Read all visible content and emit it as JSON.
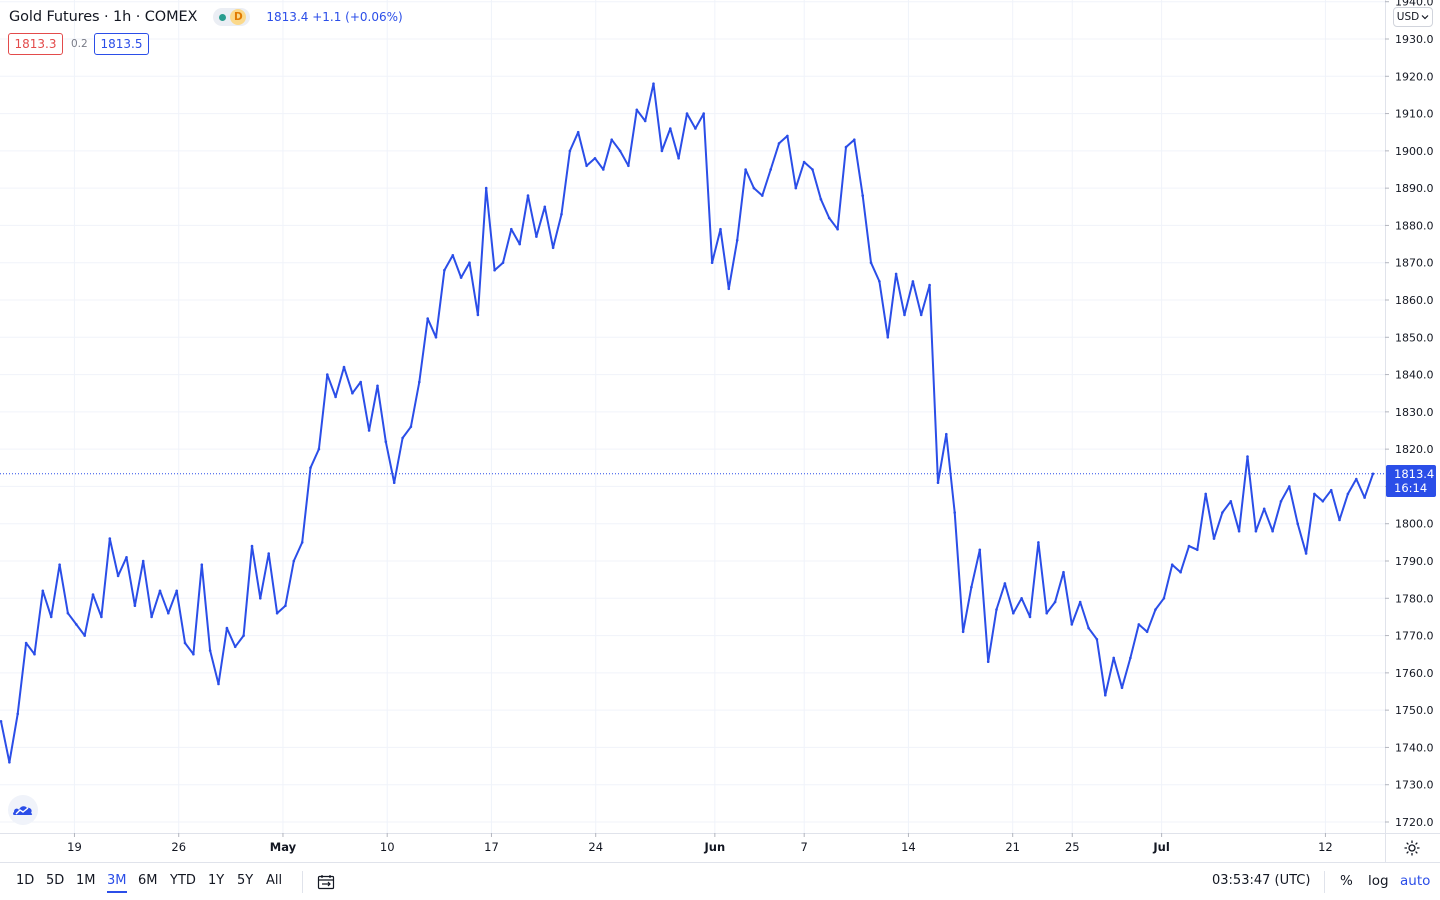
{
  "header": {
    "title": "Gold Futures · 1h · COMEX",
    "session_badge": "D",
    "quote": "1813.4 +1.1 (+0.06%)"
  },
  "prices": {
    "bid": "1813.3",
    "spread": "0.2",
    "ask": "1813.5"
  },
  "currency_button": "USD",
  "last_price_label": {
    "price": "1813.4",
    "countdown": "16:14"
  },
  "colors": {
    "line": "#2b4ee8",
    "grid": "#f0f3fa",
    "axis_text": "#131722",
    "accent": "#2b4ee8"
  },
  "icons": {
    "logo": "tradingview-cloud-icon",
    "settings": "gear-icon",
    "date_range": "calendar-range-icon"
  },
  "bottombar": {
    "ranges": [
      {
        "label": "1D",
        "active": false
      },
      {
        "label": "5D",
        "active": false
      },
      {
        "label": "1M",
        "active": false
      },
      {
        "label": "3M",
        "active": true
      },
      {
        "label": "6M",
        "active": false
      },
      {
        "label": "YTD",
        "active": false
      },
      {
        "label": "1Y",
        "active": false
      },
      {
        "label": "5Y",
        "active": false
      },
      {
        "label": "All",
        "active": false
      }
    ],
    "clock": "03:53:47 (UTC)",
    "options": {
      "percent": "%",
      "log": "log",
      "auto": "auto"
    }
  },
  "chart_data": {
    "type": "line",
    "title": "Gold Futures",
    "interval": "1h",
    "exchange": "COMEX",
    "y_range": [
      1716,
      1940
    ],
    "y_ticks": [
      1720,
      1730,
      1740,
      1750,
      1760,
      1770,
      1780,
      1790,
      1800,
      1810,
      1820,
      1830,
      1840,
      1850,
      1860,
      1870,
      1880,
      1890,
      1900,
      1910,
      1920,
      1930,
      1940
    ],
    "y_tick_labels": [
      "1720.0",
      "1730.0",
      "1740.0",
      "1750.0",
      "1760.0",
      "1770.0",
      "1780.0",
      "1790.0",
      "1800.0",
      "1810.0",
      "1820.0",
      "1830.0",
      "1840.0",
      "1850.0",
      "1860.0",
      "1870.0",
      "1880.0",
      "1890.0",
      "1900.0",
      "1910.0",
      "1920.0",
      "1930.0",
      "1940.0"
    ],
    "x_range": [
      "2021-04-14",
      "2021-07-16"
    ],
    "x_ticks": [
      {
        "date": "2021-04-19",
        "label": "19"
      },
      {
        "date": "2021-04-26",
        "label": "26"
      },
      {
        "date": "2021-05-03",
        "label": "May",
        "bold": true
      },
      {
        "date": "2021-05-10",
        "label": "10"
      },
      {
        "date": "2021-05-17",
        "label": "17"
      },
      {
        "date": "2021-05-24",
        "label": "24"
      },
      {
        "date": "2021-06-01",
        "label": "Jun",
        "bold": true
      },
      {
        "date": "2021-06-07",
        "label": "7"
      },
      {
        "date": "2021-06-14",
        "label": "14"
      },
      {
        "date": "2021-06-21",
        "label": "21"
      },
      {
        "date": "2021-06-25",
        "label": "25"
      },
      {
        "date": "2021-07-01",
        "label": "Jul",
        "bold": true
      },
      {
        "date": "2021-07-12",
        "label": "12"
      }
    ],
    "last_value": 1813.4,
    "series": [
      {
        "points": [
          [
            "2021-04-14",
            1747
          ],
          [
            "2021-04-15",
            1736
          ],
          [
            "2021-04-15",
            1749
          ],
          [
            "2021-04-16",
            1768
          ],
          [
            "2021-04-16",
            1765
          ],
          [
            "2021-04-17",
            1782
          ],
          [
            "2021-04-18",
            1775
          ],
          [
            "2021-04-18",
            1789
          ],
          [
            "2021-04-18",
            1776
          ],
          [
            "2021-04-19",
            1773
          ],
          [
            "2021-04-20",
            1770
          ],
          [
            "2021-04-20",
            1781
          ],
          [
            "2021-04-21",
            1775
          ],
          [
            "2021-04-22",
            1796
          ],
          [
            "2021-04-22",
            1786
          ],
          [
            "2021-04-23",
            1791
          ],
          [
            "2021-04-24",
            1778
          ],
          [
            "2021-04-25",
            1790
          ],
          [
            "2021-04-25",
            1775
          ],
          [
            "2021-04-26",
            1782
          ],
          [
            "2021-04-27",
            1776
          ],
          [
            "2021-04-28",
            1782
          ],
          [
            "2021-04-29",
            1768
          ],
          [
            "2021-04-29",
            1765
          ],
          [
            "2021-04-30",
            1789
          ],
          [
            "2021-04-30",
            1766
          ],
          [
            "2021-05-01",
            1757
          ],
          [
            "2021-05-01",
            1772
          ],
          [
            "2021-05-02",
            1767
          ],
          [
            "2021-05-03",
            1770
          ],
          [
            "2021-05-04",
            1794
          ],
          [
            "2021-05-05",
            1780
          ],
          [
            "2021-05-05",
            1792
          ],
          [
            "2021-05-06",
            1776
          ],
          [
            "2021-05-06",
            1778
          ],
          [
            "2021-05-07",
            1790
          ],
          [
            "2021-05-08",
            1795
          ],
          [
            "2021-05-08",
            1815
          ],
          [
            "2021-05-09",
            1820
          ],
          [
            "2021-05-10",
            1840
          ],
          [
            "2021-05-10",
            1834
          ],
          [
            "2021-05-11",
            1842
          ],
          [
            "2021-05-11",
            1835
          ],
          [
            "2021-05-12",
            1838
          ],
          [
            "2021-05-12",
            1825
          ],
          [
            "2021-05-13",
            1837
          ],
          [
            "2021-05-13",
            1822
          ],
          [
            "2021-05-14",
            1811
          ],
          [
            "2021-05-14",
            1823
          ],
          [
            "2021-05-15",
            1826
          ],
          [
            "2021-05-16",
            1838
          ],
          [
            "2021-05-17",
            1855
          ],
          [
            "2021-05-17",
            1850
          ],
          [
            "2021-05-18",
            1868
          ],
          [
            "2021-05-18",
            1872
          ],
          [
            "2021-05-19",
            1866
          ],
          [
            "2021-05-19",
            1870
          ],
          [
            "2021-05-20",
            1856
          ],
          [
            "2021-05-20",
            1890
          ],
          [
            "2021-05-21",
            1868
          ],
          [
            "2021-05-21",
            1870
          ],
          [
            "2021-05-22",
            1879
          ],
          [
            "2021-05-22",
            1875
          ],
          [
            "2021-05-23",
            1888
          ],
          [
            "2021-05-23",
            1877
          ],
          [
            "2021-05-24",
            1885
          ],
          [
            "2021-05-24",
            1874
          ],
          [
            "2021-05-25",
            1883
          ],
          [
            "2021-05-26",
            1900
          ],
          [
            "2021-05-26",
            1905
          ],
          [
            "2021-05-27",
            1896
          ],
          [
            "2021-05-27",
            1898
          ],
          [
            "2021-05-28",
            1895
          ],
          [
            "2021-05-28",
            1903
          ],
          [
            "2021-05-29",
            1900
          ],
          [
            "2021-05-29",
            1896
          ],
          [
            "2021-05-30",
            1911
          ],
          [
            "2021-05-31",
            1908
          ],
          [
            "2021-05-31",
            1918
          ],
          [
            "2021-06-01",
            1900
          ],
          [
            "2021-06-01",
            1906
          ],
          [
            "2021-06-02",
            1898
          ],
          [
            "2021-06-02",
            1910
          ],
          [
            "2021-06-03",
            1906
          ],
          [
            "2021-06-03",
            1910
          ],
          [
            "2021-06-04",
            1870
          ],
          [
            "2021-06-04",
            1879
          ],
          [
            "2021-06-05",
            1863
          ],
          [
            "2021-06-05",
            1876
          ],
          [
            "2021-06-06",
            1895
          ],
          [
            "2021-06-06",
            1890
          ],
          [
            "2021-06-07",
            1888
          ],
          [
            "2021-06-07",
            1895
          ],
          [
            "2021-06-08",
            1902
          ],
          [
            "2021-06-08",
            1904
          ],
          [
            "2021-06-09",
            1890
          ],
          [
            "2021-06-09",
            1897
          ],
          [
            "2021-06-10",
            1895
          ],
          [
            "2021-06-10",
            1887
          ],
          [
            "2021-06-11",
            1882
          ],
          [
            "2021-06-11",
            1879
          ],
          [
            "2021-06-12",
            1901
          ],
          [
            "2021-06-12",
            1903
          ],
          [
            "2021-06-13",
            1888
          ],
          [
            "2021-06-13",
            1870
          ],
          [
            "2021-06-14",
            1865
          ],
          [
            "2021-06-14",
            1850
          ],
          [
            "2021-06-15",
            1867
          ],
          [
            "2021-06-15",
            1856
          ],
          [
            "2021-06-16",
            1865
          ],
          [
            "2021-06-16",
            1856
          ],
          [
            "2021-06-17",
            1864
          ],
          [
            "2021-06-17",
            1811
          ],
          [
            "2021-06-18",
            1824
          ],
          [
            "2021-06-18",
            1803
          ],
          [
            "2021-06-19",
            1771
          ],
          [
            "2021-06-19",
            1783
          ],
          [
            "2021-06-20",
            1793
          ],
          [
            "2021-06-21",
            1763
          ],
          [
            "2021-06-21",
            1777
          ],
          [
            "2021-06-22",
            1784
          ],
          [
            "2021-06-22",
            1776
          ],
          [
            "2021-06-23",
            1780
          ],
          [
            "2021-06-23",
            1775
          ],
          [
            "2021-06-24",
            1795
          ],
          [
            "2021-06-24",
            1776
          ],
          [
            "2021-06-25",
            1779
          ],
          [
            "2021-06-25",
            1787
          ],
          [
            "2021-06-26",
            1773
          ],
          [
            "2021-06-26",
            1779
          ],
          [
            "2021-06-27",
            1772
          ],
          [
            "2021-06-27",
            1769
          ],
          [
            "2021-06-28",
            1754
          ],
          [
            "2021-06-29",
            1764
          ],
          [
            "2021-06-29",
            1756
          ],
          [
            "2021-06-30",
            1764
          ],
          [
            "2021-06-30",
            1773
          ],
          [
            "2021-07-01",
            1771
          ],
          [
            "2021-07-01",
            1777
          ],
          [
            "2021-07-02",
            1780
          ],
          [
            "2021-07-02",
            1789
          ],
          [
            "2021-07-03",
            1787
          ],
          [
            "2021-07-04",
            1794
          ],
          [
            "2021-07-05",
            1793
          ],
          [
            "2021-07-05",
            1808
          ],
          [
            "2021-07-06",
            1796
          ],
          [
            "2021-07-06",
            1803
          ],
          [
            "2021-07-07",
            1806
          ],
          [
            "2021-07-07",
            1798
          ],
          [
            "2021-07-08",
            1818
          ],
          [
            "2021-07-08",
            1798
          ],
          [
            "2021-07-09",
            1804
          ],
          [
            "2021-07-09",
            1798
          ],
          [
            "2021-07-10",
            1806
          ],
          [
            "2021-07-10",
            1810
          ],
          [
            "2021-07-11",
            1800
          ],
          [
            "2021-07-11",
            1792
          ],
          [
            "2021-07-12",
            1808
          ],
          [
            "2021-07-12",
            1806
          ],
          [
            "2021-07-13",
            1809
          ],
          [
            "2021-07-13",
            1801
          ],
          [
            "2021-07-14",
            1808
          ],
          [
            "2021-07-14",
            1812
          ],
          [
            "2021-07-15",
            1807
          ],
          [
            "2021-07-15",
            1813.4
          ]
        ]
      }
    ]
  }
}
